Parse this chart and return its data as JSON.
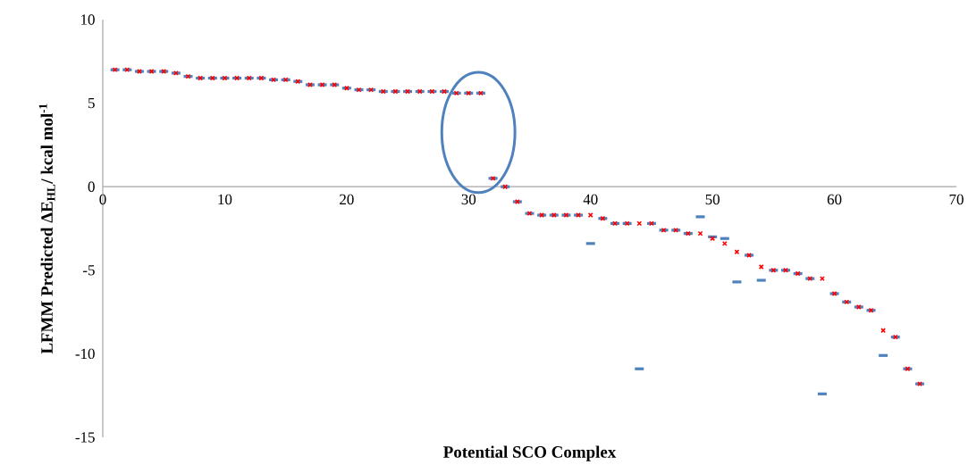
{
  "chart_data": {
    "type": "scatter",
    "xlabel": "Potential SCO Complex",
    "ylabel": "LFMM Predicted ΔE$_{HL}$/ kcal mol$^{-1}$",
    "x": [
      1,
      2,
      3,
      4,
      5,
      6,
      7,
      8,
      9,
      10,
      11,
      12,
      13,
      14,
      15,
      16,
      17,
      18,
      19,
      20,
      21,
      22,
      23,
      24,
      25,
      26,
      27,
      28,
      29,
      30,
      31,
      32,
      33,
      34,
      35,
      36,
      37,
      38,
      39,
      40,
      41,
      42,
      43,
      44,
      45,
      46,
      47,
      48,
      49,
      50,
      51,
      52,
      53,
      54,
      55,
      56,
      57,
      58,
      59,
      60,
      61,
      62,
      63,
      64,
      65,
      66,
      67
    ],
    "xlim": [
      0,
      70
    ],
    "xticks": [
      0,
      10,
      20,
      30,
      40,
      50,
      60,
      70
    ],
    "ylim": [
      -15,
      10
    ],
    "yticks": [
      -15,
      -10,
      -5,
      0,
      5,
      10
    ],
    "grid": false,
    "legend": false,
    "series": [
      {
        "color": "#4f81bd",
        "values": [
          7.0,
          7.0,
          6.9,
          6.9,
          6.9,
          6.8,
          6.6,
          6.5,
          6.5,
          6.5,
          6.5,
          6.5,
          6.5,
          6.4,
          6.4,
          6.3,
          6.1,
          6.1,
          6.1,
          5.9,
          5.8,
          5.8,
          5.7,
          5.7,
          5.7,
          5.7,
          5.7,
          5.7,
          5.6,
          5.6,
          5.6,
          0.5,
          0.0,
          -0.9,
          -1.6,
          -1.7,
          -1.7,
          -1.7,
          -1.7,
          -3.4,
          -1.9,
          -2.2,
          -2.2,
          -10.9,
          -2.2,
          -2.6,
          -2.6,
          -2.8,
          -1.8,
          -3.0,
          -3.1,
          -5.7,
          -4.1,
          -5.6,
          -5.0,
          -5.0,
          -5.2,
          -5.5,
          -12.4,
          -6.4,
          -6.9,
          -7.2,
          -7.4,
          -10.1,
          -9.0,
          -10.9,
          -11.8
        ]
      },
      {
        "color": "#ff0000",
        "marker": "cross",
        "values": [
          7.0,
          7.0,
          6.9,
          6.9,
          6.9,
          6.8,
          6.6,
          6.5,
          6.5,
          6.5,
          6.5,
          6.5,
          6.5,
          6.4,
          6.4,
          6.3,
          6.1,
          6.1,
          6.1,
          5.9,
          5.8,
          5.8,
          5.7,
          5.7,
          5.7,
          5.7,
          5.7,
          5.7,
          5.6,
          5.6,
          5.6,
          0.5,
          0.0,
          -0.9,
          -1.6,
          -1.7,
          -1.7,
          -1.7,
          -1.7,
          -1.7,
          -1.9,
          -2.2,
          -2.2,
          -2.2,
          -2.2,
          -2.6,
          -2.6,
          -2.8,
          -2.8,
          -3.1,
          -3.4,
          -3.9,
          -4.1,
          -4.8,
          -5.0,
          -5.0,
          -5.2,
          -5.5,
          -5.5,
          -6.4,
          -6.9,
          -7.2,
          -7.4,
          -8.6,
          -9.0,
          -10.9,
          -11.8
        ]
      }
    ]
  }
}
